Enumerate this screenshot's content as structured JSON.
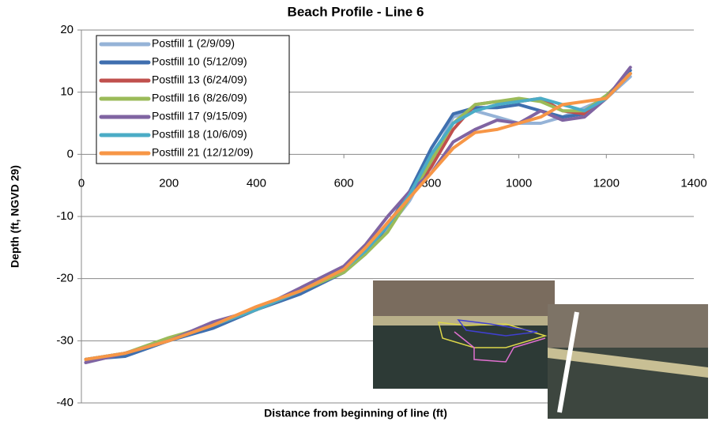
{
  "chart_data": {
    "type": "line",
    "title": "Beach Profile - Line 6",
    "x_label": "Distance from beginning of line (ft)",
    "y_label": "Depth (ft,  NGVD 29)",
    "x": [
      10,
      100,
      200,
      300,
      400,
      500,
      600,
      650,
      700,
      750,
      800,
      850,
      900,
      950,
      1000,
      1050,
      1100,
      1150,
      1200,
      1255
    ],
    "series": [
      {
        "name": "Postfill 1 (2/9/09)",
        "color": "#95b3d7",
        "values": [
          -33.5,
          -32,
          -30,
          -27.5,
          -25,
          -22,
          -18.5,
          -15.5,
          -12,
          -7.5,
          -1,
          6,
          7,
          6,
          5,
          5,
          6,
          7.5,
          9,
          12.5
        ]
      },
      {
        "name": "Postfill 10 (5/12/09)",
        "color": "#3f6faf",
        "values": [
          -33,
          -32.5,
          -30,
          -28,
          -25,
          -22.5,
          -19,
          -16,
          -11.5,
          -6,
          1,
          6.5,
          7.5,
          7.5,
          8,
          7,
          6,
          6.5,
          9,
          13.5
        ]
      },
      {
        "name": "Postfill 13 (6/24/09)",
        "color": "#c0504d",
        "values": [
          -33,
          -32,
          -30,
          -27.5,
          -25,
          -22,
          -18.5,
          -15.5,
          -11,
          -7,
          -2,
          4,
          8,
          8.5,
          8.5,
          9,
          7,
          6.5,
          9,
          13
        ]
      },
      {
        "name": "Postfill 16 (8/26/09)",
        "color": "#9bbb59",
        "values": [
          -33,
          -32,
          -29.5,
          -27.5,
          -25,
          -22,
          -19,
          -16,
          -12.5,
          -7,
          -1,
          5,
          8,
          8.5,
          9,
          8.5,
          7,
          7,
          9.5,
          13
        ]
      },
      {
        "name": "Postfill 17 (9/15/09)",
        "color": "#8064a2",
        "values": [
          -33.5,
          -32,
          -30,
          -27,
          -25,
          -21.5,
          -18,
          -14.5,
          -10,
          -6,
          -3,
          2,
          4,
          5.5,
          5,
          7,
          5.5,
          6,
          9,
          14
        ]
      },
      {
        "name": "Postfill 18 (10/6/09)",
        "color": "#4bacc6",
        "values": [
          -33,
          -32,
          -30,
          -27.5,
          -25,
          -22,
          -18.5,
          -15.5,
          -11.5,
          -6.5,
          0,
          5,
          7,
          8,
          8.5,
          9,
          8,
          7,
          9,
          13
        ]
      },
      {
        "name": "Postfill 21 (12/12/09)",
        "color": "#f79646",
        "values": [
          -33,
          -32,
          -30,
          -27.5,
          -24.5,
          -22,
          -18.5,
          -15,
          -11,
          -7,
          -3,
          1,
          3.5,
          4,
          5,
          6,
          8,
          8.5,
          9,
          13
        ]
      }
    ],
    "xlim": [
      0,
      1400
    ],
    "xticks": [
      0,
      200,
      400,
      600,
      800,
      1000,
      1200,
      1400
    ],
    "ylim": [
      -40,
      20
    ],
    "yticks": [
      -40,
      -30,
      -20,
      -10,
      0,
      10,
      20
    ],
    "grid": true,
    "legend": "top-left"
  }
}
